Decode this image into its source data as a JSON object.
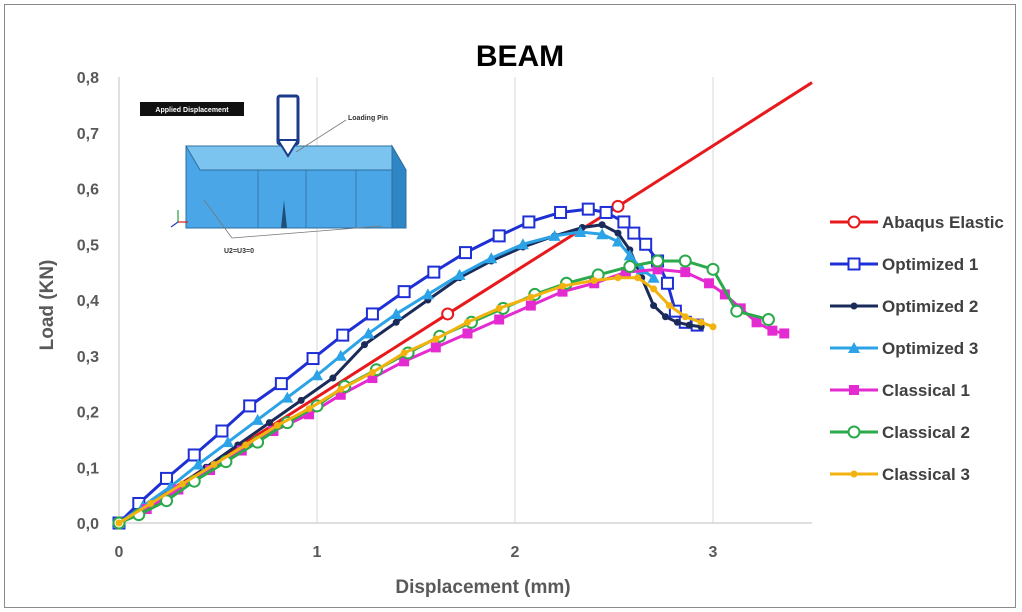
{
  "chart_data": {
    "type": "line",
    "title": "BEAM",
    "xlabel": "Displacement (mm)",
    "ylabel": "Load (KN)",
    "xlim": [
      0,
      3.5
    ],
    "ylim": [
      0,
      0.8
    ],
    "x_ticks": [
      "0",
      "1",
      "2",
      "3"
    ],
    "y_ticks": [
      "0,0",
      "0,1",
      "0,2",
      "0,3",
      "0,4",
      "0,5",
      "0,6",
      "0,7",
      "0,8"
    ],
    "grid": "vertical",
    "legend_position": "right",
    "inset": {
      "tag": "Applied Displacement",
      "pin_label": "Loading Pin",
      "bc_label": "U2=U3=0"
    },
    "series": [
      {
        "name": "Abaqus Elastic",
        "color": "#e8191c",
        "marker": "circle-open",
        "x": [
          0,
          1.66,
          2.52,
          3.5
        ],
        "y": [
          0,
          0.375,
          0.568,
          0.79
        ]
      },
      {
        "name": "Optimized 1",
        "color": "#1f2fd6",
        "marker": "square-open",
        "x": [
          0,
          0.1,
          0.24,
          0.38,
          0.52,
          0.66,
          0.82,
          0.98,
          1.13,
          1.28,
          1.44,
          1.59,
          1.75,
          1.92,
          2.07,
          2.23,
          2.37,
          2.46,
          2.55,
          2.6,
          2.66,
          2.72,
          2.77,
          2.81,
          2.86,
          2.92
        ],
        "y": [
          0,
          0.035,
          0.08,
          0.122,
          0.165,
          0.21,
          0.25,
          0.295,
          0.337,
          0.375,
          0.415,
          0.45,
          0.485,
          0.515,
          0.54,
          0.557,
          0.563,
          0.557,
          0.54,
          0.52,
          0.5,
          0.47,
          0.43,
          0.38,
          0.36,
          0.355
        ]
      },
      {
        "name": "Optimized 2",
        "color": "#1a2b59",
        "marker": "dot",
        "x": [
          0,
          0.12,
          0.28,
          0.44,
          0.6,
          0.76,
          0.92,
          1.08,
          1.24,
          1.4,
          1.56,
          1.72,
          1.88,
          2.04,
          2.2,
          2.34,
          2.44,
          2.52,
          2.58,
          2.64,
          2.7,
          2.76,
          2.82,
          2.88,
          2.94
        ],
        "y": [
          0,
          0.025,
          0.06,
          0.1,
          0.14,
          0.18,
          0.22,
          0.26,
          0.32,
          0.36,
          0.4,
          0.44,
          0.47,
          0.495,
          0.515,
          0.53,
          0.535,
          0.52,
          0.49,
          0.44,
          0.39,
          0.37,
          0.36,
          0.355,
          0.352
        ]
      },
      {
        "name": "Optimized 3",
        "color": "#2ba3e6",
        "marker": "triangle",
        "x": [
          0,
          0.12,
          0.26,
          0.4,
          0.55,
          0.7,
          0.85,
          1.0,
          1.12,
          1.26,
          1.4,
          1.56,
          1.72,
          1.88,
          2.04,
          2.2,
          2.33,
          2.44,
          2.52,
          2.58,
          2.64,
          2.7
        ],
        "y": [
          0,
          0.03,
          0.065,
          0.105,
          0.145,
          0.185,
          0.225,
          0.265,
          0.3,
          0.34,
          0.375,
          0.41,
          0.445,
          0.475,
          0.5,
          0.515,
          0.522,
          0.518,
          0.505,
          0.48,
          0.455,
          0.44
        ]
      },
      {
        "name": "Classical 1",
        "color": "#e42bd1",
        "marker": "square",
        "x": [
          0,
          0.14,
          0.3,
          0.46,
          0.62,
          0.78,
          0.96,
          1.12,
          1.28,
          1.44,
          1.6,
          1.76,
          1.92,
          2.08,
          2.24,
          2.4,
          2.56,
          2.72,
          2.86,
          2.98,
          3.06,
          3.14,
          3.22,
          3.3,
          3.36
        ],
        "y": [
          0,
          0.025,
          0.06,
          0.095,
          0.13,
          0.165,
          0.195,
          0.23,
          0.26,
          0.29,
          0.315,
          0.34,
          0.365,
          0.39,
          0.415,
          0.43,
          0.45,
          0.455,
          0.45,
          0.43,
          0.41,
          0.385,
          0.36,
          0.345,
          0.34
        ]
      },
      {
        "name": "Classical 2",
        "color": "#2aaa4a",
        "marker": "circle-open",
        "x": [
          0,
          0.1,
          0.24,
          0.38,
          0.54,
          0.7,
          0.85,
          1.0,
          1.14,
          1.3,
          1.46,
          1.62,
          1.78,
          1.94,
          2.1,
          2.26,
          2.42,
          2.58,
          2.72,
          2.86,
          3.0,
          3.12,
          3.28
        ],
        "y": [
          0,
          0.015,
          0.04,
          0.075,
          0.11,
          0.145,
          0.18,
          0.21,
          0.245,
          0.275,
          0.305,
          0.335,
          0.36,
          0.385,
          0.41,
          0.43,
          0.445,
          0.46,
          0.47,
          0.47,
          0.455,
          0.38,
          0.365
        ]
      },
      {
        "name": "Classical 3",
        "color": "#f2b30f",
        "marker": "dot",
        "x": [
          0,
          0.16,
          0.32,
          0.48,
          0.64,
          0.8,
          0.96,
          1.12,
          1.28,
          1.44,
          1.6,
          1.76,
          1.92,
          2.08,
          2.24,
          2.4,
          2.52,
          2.62,
          2.7,
          2.78,
          2.86,
          2.94,
          3.0
        ],
        "y": [
          0,
          0.035,
          0.07,
          0.105,
          0.14,
          0.175,
          0.205,
          0.24,
          0.27,
          0.305,
          0.33,
          0.36,
          0.385,
          0.405,
          0.425,
          0.435,
          0.44,
          0.44,
          0.42,
          0.39,
          0.37,
          0.36,
          0.352
        ]
      }
    ]
  }
}
